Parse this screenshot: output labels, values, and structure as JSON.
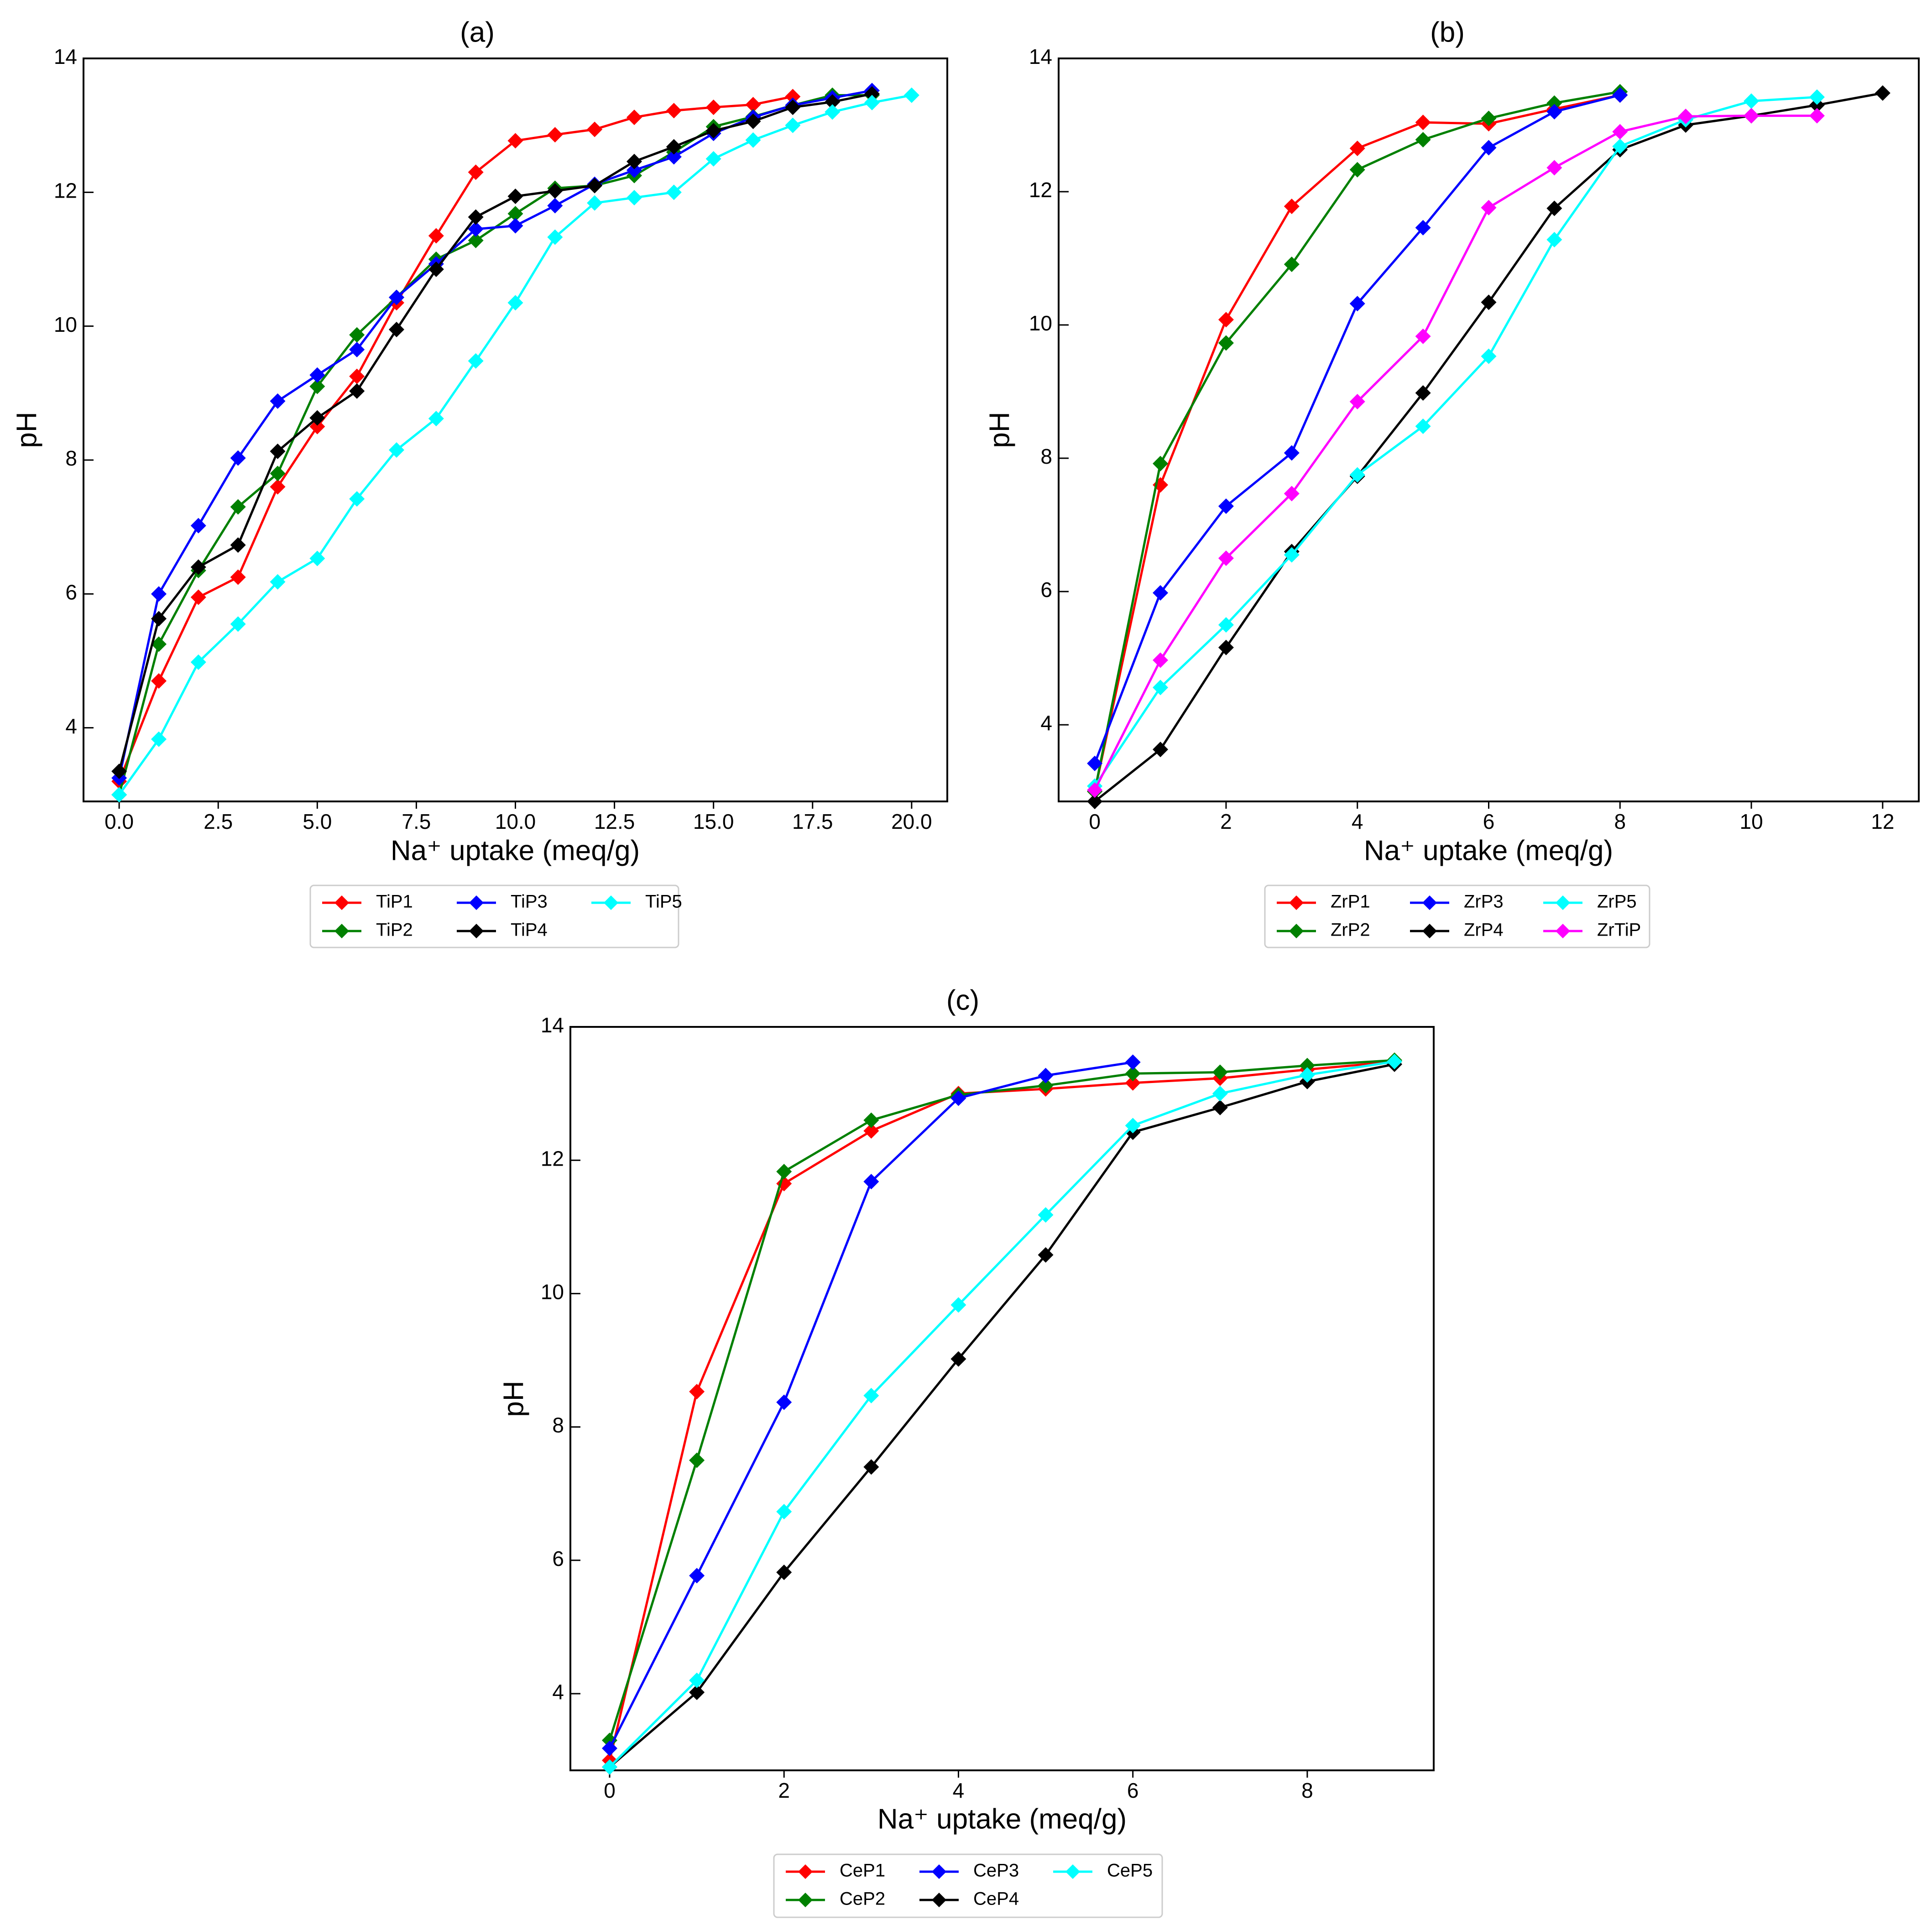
{
  "chart_data": [
    {
      "type": "line",
      "title": "(a)",
      "xlabel": "Na⁺ uptake (meq/g)",
      "ylabel": "pH",
      "xlim": [
        -0.9,
        20.9
      ],
      "ylim": [
        2.9,
        14.0
      ],
      "xticks": [
        0,
        2.5,
        5,
        7.5,
        10,
        12.5,
        15,
        17.5,
        20
      ],
      "xtick_labels": [
        "0.0",
        "2.5",
        "5.0",
        "7.5",
        "10.0",
        "12.5",
        "15.0",
        "17.5",
        "20.0"
      ],
      "yticks": [
        4,
        6,
        8,
        10,
        12,
        14
      ],
      "ytick_labels": [
        "4",
        "6",
        "8",
        "10",
        "12",
        "14"
      ],
      "grid": false,
      "legend_position": "below",
      "series": [
        {
          "name": "TiP1",
          "color": "#ff0000",
          "x": [
            0,
            1,
            2,
            3,
            4,
            5,
            6,
            7,
            8,
            9,
            10,
            11,
            12,
            13,
            14,
            15,
            16,
            17
          ],
          "y": [
            3.2,
            4.7,
            5.95,
            6.25,
            7.6,
            8.5,
            9.25,
            10.35,
            11.35,
            12.3,
            12.77,
            12.86,
            12.94,
            13.12,
            13.22,
            13.27,
            13.31,
            13.43
          ]
        },
        {
          "name": "TiP2",
          "color": "#008000",
          "x": [
            0,
            1,
            2,
            3,
            4,
            5,
            6,
            7,
            8,
            9,
            10,
            11,
            12,
            13,
            14,
            15,
            16,
            17,
            18,
            19
          ],
          "y": [
            3.0,
            5.25,
            6.35,
            7.3,
            7.8,
            9.1,
            9.87,
            10.43,
            11.0,
            11.28,
            11.68,
            12.06,
            12.1,
            12.25,
            12.6,
            12.98,
            13.13,
            13.3,
            13.45,
            13.45
          ]
        },
        {
          "name": "TiP3",
          "color": "#0000ff",
          "x": [
            0,
            1,
            2,
            3,
            4,
            5,
            6,
            7,
            8,
            9,
            10,
            11,
            12,
            13,
            14,
            15,
            16,
            17,
            18,
            19
          ],
          "y": [
            3.25,
            6.0,
            7.02,
            8.03,
            8.88,
            9.27,
            9.65,
            10.43,
            10.93,
            11.45,
            11.5,
            11.8,
            12.12,
            12.33,
            12.53,
            12.88,
            13.12,
            13.3,
            13.41,
            13.52
          ]
        },
        {
          "name": "TiP4",
          "color": "#000000",
          "x": [
            0,
            1,
            2,
            3,
            4,
            5,
            6,
            7,
            8,
            9,
            10,
            11,
            12,
            13,
            14,
            15,
            16,
            17,
            18,
            19
          ],
          "y": [
            3.35,
            5.63,
            6.4,
            6.73,
            8.13,
            8.63,
            9.03,
            9.95,
            10.85,
            11.63,
            11.94,
            12.02,
            12.1,
            12.46,
            12.68,
            12.92,
            13.06,
            13.27,
            13.35,
            13.47
          ]
        },
        {
          "name": "TiP5",
          "color": "#00ffff",
          "x": [
            0,
            1,
            2,
            3,
            4,
            5,
            6,
            7,
            8,
            9,
            10,
            11,
            12,
            13,
            14,
            15,
            16,
            17,
            18,
            19,
            20
          ],
          "y": [
            3.0,
            3.83,
            4.98,
            5.55,
            6.18,
            6.53,
            7.42,
            8.15,
            8.62,
            9.48,
            10.35,
            11.33,
            11.84,
            11.92,
            12.0,
            12.5,
            12.78,
            13.0,
            13.2,
            13.34,
            13.45
          ]
        }
      ]
    },
    {
      "type": "line",
      "title": "(b)",
      "xlabel": "Na⁺ uptake (meq/g)",
      "ylabel": "pH",
      "xlim": [
        -0.55,
        12.55
      ],
      "ylim": [
        2.85,
        14.0
      ],
      "xticks": [
        0,
        2,
        4,
        6,
        8,
        10,
        12
      ],
      "xtick_labels": [
        "0",
        "2",
        "4",
        "6",
        "8",
        "10",
        "12"
      ],
      "yticks": [
        4,
        6,
        8,
        10,
        12,
        14
      ],
      "ytick_labels": [
        "4",
        "6",
        "8",
        "10",
        "12",
        "14"
      ],
      "grid": false,
      "legend_position": "below",
      "series": [
        {
          "name": "ZrP1",
          "color": "#ff0000",
          "x": [
            0,
            1,
            2,
            3,
            4,
            5,
            6,
            7,
            8
          ],
          "y": [
            3.0,
            7.6,
            10.08,
            11.78,
            12.65,
            13.04,
            13.02,
            13.24,
            13.45
          ]
        },
        {
          "name": "ZrP2",
          "color": "#008000",
          "x": [
            0,
            1,
            2,
            3,
            4,
            5,
            6,
            7,
            8
          ],
          "y": [
            3.0,
            7.92,
            9.73,
            10.91,
            12.33,
            12.78,
            13.1,
            13.33,
            13.5
          ]
        },
        {
          "name": "ZrP3",
          "color": "#0000ff",
          "x": [
            0,
            1,
            2,
            3,
            4,
            5,
            6,
            7,
            8
          ],
          "y": [
            3.42,
            5.98,
            7.28,
            8.08,
            10.32,
            11.46,
            12.66,
            13.2,
            13.45
          ]
        },
        {
          "name": "ZrP4",
          "color": "#000000",
          "x": [
            0,
            1,
            2,
            3,
            4,
            5,
            6,
            7,
            8,
            9,
            10,
            11,
            12
          ],
          "y": [
            2.85,
            3.63,
            5.16,
            6.6,
            7.73,
            8.98,
            10.34,
            11.75,
            12.63,
            13.0,
            13.14,
            13.3,
            13.48
          ]
        },
        {
          "name": "ZrP5",
          "color": "#00ffff",
          "x": [
            0,
            1,
            2,
            3,
            4,
            5,
            6,
            7,
            8,
            9,
            10,
            11
          ],
          "y": [
            3.08,
            4.56,
            5.5,
            6.55,
            7.75,
            8.48,
            9.53,
            11.28,
            12.68,
            13.08,
            13.36,
            13.42
          ]
        },
        {
          "name": "ZrTiP",
          "color": "#ff00ff",
          "x": [
            0,
            1,
            2,
            3,
            4,
            5,
            6,
            7,
            8,
            9,
            10,
            11
          ],
          "y": [
            3.02,
            4.97,
            6.5,
            7.47,
            8.85,
            9.83,
            11.76,
            12.36,
            12.9,
            13.13,
            13.14,
            13.14
          ]
        }
      ]
    },
    {
      "type": "line",
      "title": "(c)",
      "xlabel": "Na⁺ uptake (meq/g)",
      "ylabel": "pH",
      "xlim": [
        -0.45,
        9.45
      ],
      "ylim": [
        2.85,
        14.0
      ],
      "xticks": [
        0,
        2,
        4,
        6,
        8
      ],
      "xtick_labels": [
        "0",
        "2",
        "4",
        "6",
        "8"
      ],
      "yticks": [
        4,
        6,
        8,
        10,
        12,
        14
      ],
      "ytick_labels": [
        "4",
        "6",
        "8",
        "10",
        "12",
        "14"
      ],
      "grid": false,
      "legend_position": "below",
      "series": [
        {
          "name": "CeP1",
          "color": "#ff0000",
          "x": [
            0,
            1,
            2,
            3,
            4,
            5,
            6,
            7,
            8,
            9
          ],
          "y": [
            3.0,
            8.53,
            11.65,
            12.44,
            13.0,
            13.07,
            13.16,
            13.23,
            13.36,
            13.48
          ]
        },
        {
          "name": "CeP2",
          "color": "#008000",
          "x": [
            0,
            1,
            2,
            3,
            4,
            5,
            6,
            7,
            8,
            9
          ],
          "y": [
            3.3,
            7.5,
            11.83,
            12.6,
            12.98,
            13.12,
            13.3,
            13.32,
            13.42,
            13.5
          ]
        },
        {
          "name": "CeP3",
          "color": "#0000ff",
          "x": [
            0,
            1,
            2,
            3,
            4,
            5,
            6
          ],
          "y": [
            3.18,
            5.77,
            8.37,
            11.68,
            12.93,
            13.27,
            13.47
          ]
        },
        {
          "name": "CeP4",
          "color": "#000000",
          "x": [
            0,
            1,
            2,
            3,
            4,
            5,
            6,
            7,
            8,
            9
          ],
          "y": [
            2.9,
            4.02,
            5.82,
            7.4,
            9.02,
            10.58,
            12.42,
            12.79,
            13.18,
            13.44
          ]
        },
        {
          "name": "CeP5",
          "color": "#00ffff",
          "x": [
            0,
            1,
            2,
            3,
            4,
            5,
            6,
            7,
            8,
            9
          ],
          "y": [
            2.9,
            4.2,
            6.73,
            8.47,
            9.83,
            11.18,
            12.52,
            13.0,
            13.28,
            13.48
          ]
        }
      ]
    }
  ]
}
